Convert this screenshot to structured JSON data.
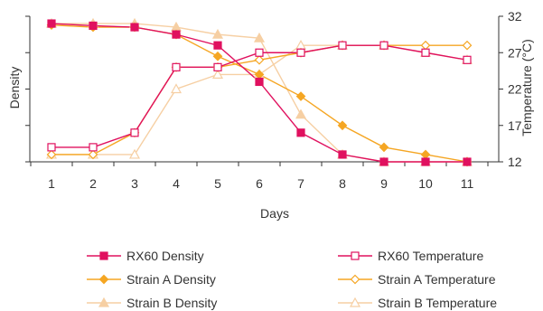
{
  "chart_data": {
    "type": "line",
    "xlabel": "Days",
    "ylabel_left": "Density",
    "ylabel_right": "Temperature (°C)",
    "categories": [
      "1",
      "2",
      "3",
      "4",
      "5",
      "6",
      "7",
      "8",
      "9",
      "10",
      "11"
    ],
    "right_axis": {
      "ylim": [
        12,
        32
      ],
      "ticks": [
        "12",
        "17",
        "22",
        "27",
        "32"
      ]
    },
    "left_axis_ticks": "none",
    "legend_position": "bottom",
    "colors": {
      "rx60": "#e0115f",
      "strain_a": "#f5a623",
      "strain_b": "#f6cfa3",
      "axis": "#333333"
    },
    "series": [
      {
        "name": "RX60 Density",
        "axis": "right",
        "color": "rx60",
        "marker": "square-filled",
        "values": [
          31,
          30.7,
          30.5,
          29.5,
          28,
          23,
          16,
          13,
          12,
          12,
          12
        ]
      },
      {
        "name": "RX60 Temperature",
        "axis": "right",
        "color": "rx60",
        "marker": "square-open",
        "values": [
          14,
          14,
          16,
          25,
          25,
          27,
          27,
          28,
          28,
          27,
          26
        ]
      },
      {
        "name": "Strain A Density",
        "axis": "right",
        "color": "strain_a",
        "marker": "diamond-filled",
        "values": [
          30.8,
          30.5,
          30.5,
          29.5,
          26.5,
          24,
          21,
          17,
          14,
          13,
          12
        ]
      },
      {
        "name": "Strain A Temperature",
        "axis": "right",
        "color": "strain_a",
        "marker": "diamond-open",
        "values": [
          13,
          13,
          16,
          25,
          25,
          26,
          27,
          28,
          28,
          28,
          28
        ]
      },
      {
        "name": "Strain B Density",
        "axis": "right",
        "color": "strain_b",
        "marker": "triangle-filled",
        "values": [
          31,
          31,
          31,
          30.5,
          29.5,
          29,
          18.5,
          13,
          12,
          12,
          12
        ]
      },
      {
        "name": "Strain B Temperature",
        "axis": "right",
        "color": "strain_b",
        "marker": "triangle-open",
        "values": [
          13,
          13,
          13,
          22,
          24,
          24,
          28,
          28,
          28,
          27,
          26
        ]
      }
    ]
  }
}
